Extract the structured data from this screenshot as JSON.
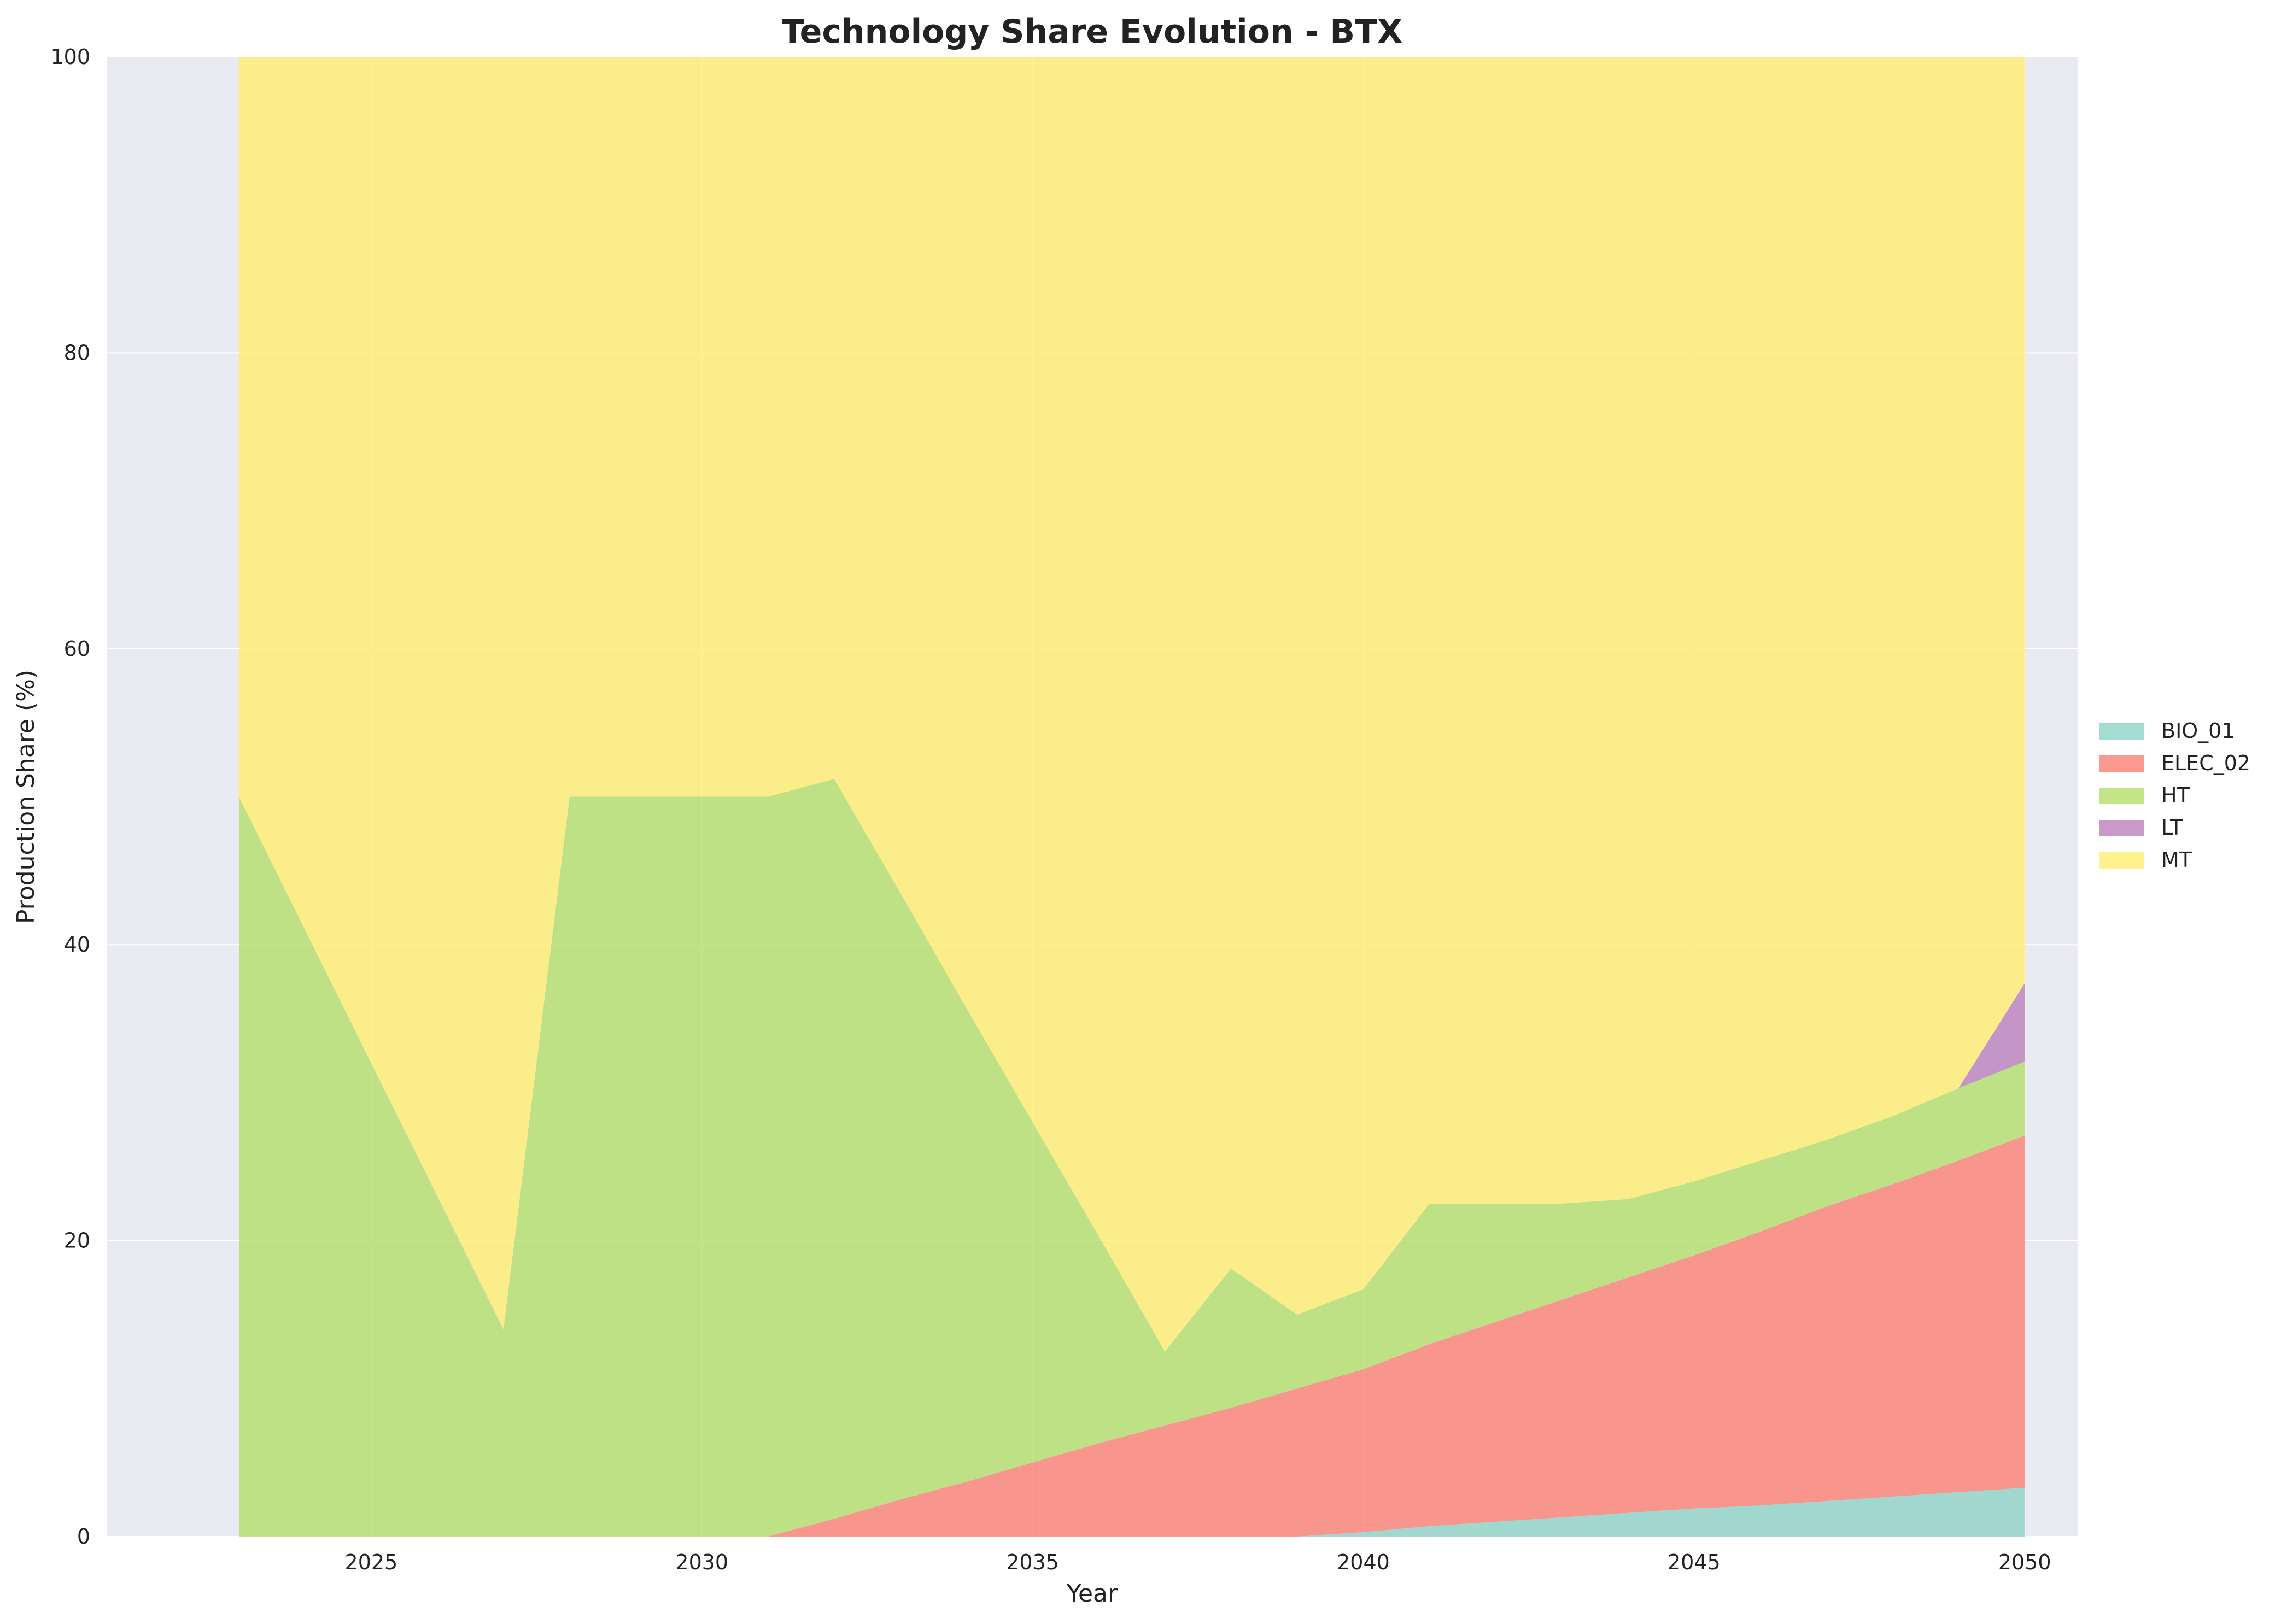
{
  "chart_data": {
    "type": "area",
    "stacked": true,
    "title": "Technology Share Evolution - BTX",
    "xlabel": "Year",
    "ylabel": "Production Share (%)",
    "xlim": [
      2021,
      2050.8
    ],
    "ylim": [
      0,
      100
    ],
    "xticks": [
      2025,
      2030,
      2035,
      2040,
      2045,
      2050
    ],
    "yticks": [
      0,
      20,
      40,
      60,
      80,
      100
    ],
    "grid": true,
    "legend_position": "right",
    "background": "#eaeaf2",
    "x": [
      2023,
      2024,
      2025,
      2026,
      2027,
      2028,
      2029,
      2030,
      2031,
      2032,
      2033,
      2034,
      2035,
      2036,
      2037,
      2038,
      2039,
      2040,
      2041,
      2042,
      2043,
      2044,
      2045,
      2046,
      2047,
      2048,
      2049,
      2050
    ],
    "series": [
      {
        "name": "BIO_01",
        "color": "#8dd3c7",
        "values": [
          0,
          0,
          0,
          0,
          0,
          0,
          0,
          0,
          0,
          0,
          0,
          0,
          0,
          0,
          0,
          0,
          0,
          0.3,
          0.7,
          1.0,
          1.3,
          1.6,
          1.9,
          2.1,
          2.4,
          2.7,
          3.0,
          3.3
        ]
      },
      {
        "name": "ELEC_02",
        "color": "#fb8072",
        "values": [
          0,
          0,
          0,
          0,
          0,
          0,
          0,
          0,
          0,
          1.2,
          2.5,
          3.7,
          5.0,
          6.3,
          7.5,
          8.7,
          10.0,
          11.0,
          12.3,
          13.5,
          14.7,
          15.9,
          17.1,
          18.5,
          19.9,
          21.1,
          22.4,
          23.8
        ]
      },
      {
        "name": "HT",
        "color": "#b3de69",
        "values": [
          50,
          41,
          32,
          23,
          14,
          50,
          50,
          50,
          50,
          50,
          41,
          32,
          23,
          14,
          5,
          9.4,
          5,
          5.4,
          9.5,
          8,
          6.5,
          5.3,
          5,
          4.8,
          4.5,
          4.6,
          4.9,
          5
        ]
      },
      {
        "name": "LT",
        "color": "#bc80bd",
        "values": [
          0,
          0,
          0,
          0,
          0,
          0,
          0,
          0,
          0,
          0,
          0,
          0,
          0,
          0,
          0,
          0,
          0,
          0,
          0,
          0,
          0,
          0,
          0,
          0,
          0,
          0,
          0,
          5.3
        ]
      },
      {
        "name": "MT",
        "color": "#ffed6f",
        "values": [
          50,
          59,
          68,
          77,
          86,
          50,
          50,
          50,
          50,
          48.8,
          56.5,
          64.3,
          72,
          79.7,
          87.5,
          81.9,
          85,
          83.3,
          77.5,
          77.5,
          77.5,
          77.2,
          76,
          74.6,
          73.2,
          71.6,
          69.7,
          62.6
        ]
      }
    ]
  }
}
